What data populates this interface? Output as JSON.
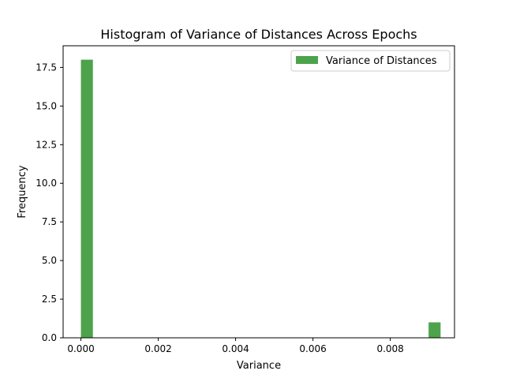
{
  "chart_data": {
    "type": "bar",
    "title": "Histogram of Variance of Distances Across Epochs",
    "xlabel": "Variance",
    "ylabel": "Frequency",
    "xlim": [
      -0.00046,
      0.00966
    ],
    "ylim": [
      0,
      18.9
    ],
    "x_ticks": [
      0.0,
      0.002,
      0.004,
      0.006,
      0.008
    ],
    "x_tick_labels": [
      "0.000",
      "0.002",
      "0.004",
      "0.006",
      "0.008"
    ],
    "y_ticks": [
      0.0,
      2.5,
      5.0,
      7.5,
      10.0,
      12.5,
      15.0,
      17.5
    ],
    "y_tick_labels": [
      "0.0",
      "2.5",
      "5.0",
      "7.5",
      "10.0",
      "12.5",
      "15.0",
      "17.5"
    ],
    "grid": false,
    "legend": {
      "placement": "top-right",
      "entries": [
        "Variance of Distances"
      ]
    },
    "series": [
      {
        "name": "Variance of Distances",
        "color": "#4ca34c",
        "bins": [
          {
            "x0": 0.0,
            "x1": 0.00031,
            "value": 18
          },
          {
            "x0": 0.00899,
            "x1": 0.0093,
            "value": 1
          }
        ]
      }
    ]
  }
}
